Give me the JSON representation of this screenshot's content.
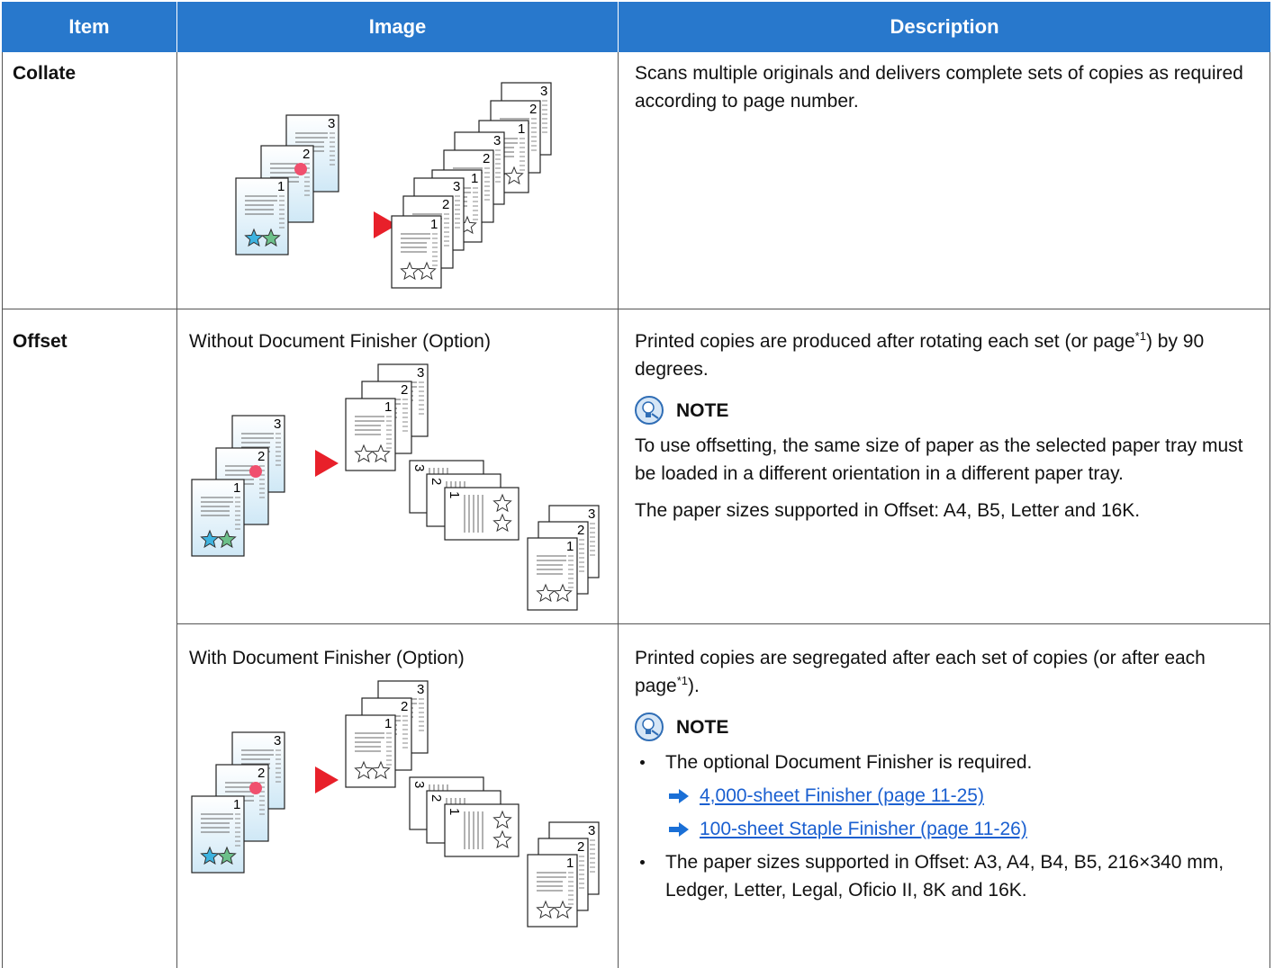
{
  "table": {
    "headers": [
      "Item",
      "Image",
      "Description"
    ],
    "rows": [
      {
        "item": "Collate",
        "variants": [
          {
            "description": [
              "Scans multiple originals and delivers complete sets of copies as required according to page number."
            ]
          }
        ]
      },
      {
        "item": "Offset",
        "variants": [
          {
            "caption": "Without Document Finisher (Option)",
            "description": [
              {
                "text": "Printed copies are produced after rotating each set (or page",
                "sup": "*1",
                "after": ") by 90 degrees."
              }
            ],
            "note": {
              "label": "NOTE",
              "paragraphs": [
                "To use offsetting, the same size of paper as the selected paper tray must be loaded in a different orientation in a different paper tray.",
                "The paper sizes supported in Offset: A4, B5, Letter and 16K."
              ]
            }
          },
          {
            "caption": "With Document Finisher (Option)",
            "description": [
              {
                "text": "Printed copies are segregated after each set of copies (or after each page",
                "sup": "*1",
                "after": ")."
              }
            ],
            "note": {
              "label": "NOTE",
              "bullets": [
                {
                  "text": "The optional Document Finisher is required.",
                  "links": [
                    "4,000-sheet Finisher (page 11-25)",
                    "100-sheet Staple Finisher (page 11-26)"
                  ]
                },
                {
                  "text": "The paper sizes supported in Offset: A3, A4, B4, B5, 216×340  mm, Ledger, Letter, Legal, Oficio  II, 8K and 16K."
                }
              ]
            }
          }
        ]
      }
    ]
  },
  "illustration": {
    "page_numbers": [
      "1",
      "2",
      "3"
    ]
  }
}
